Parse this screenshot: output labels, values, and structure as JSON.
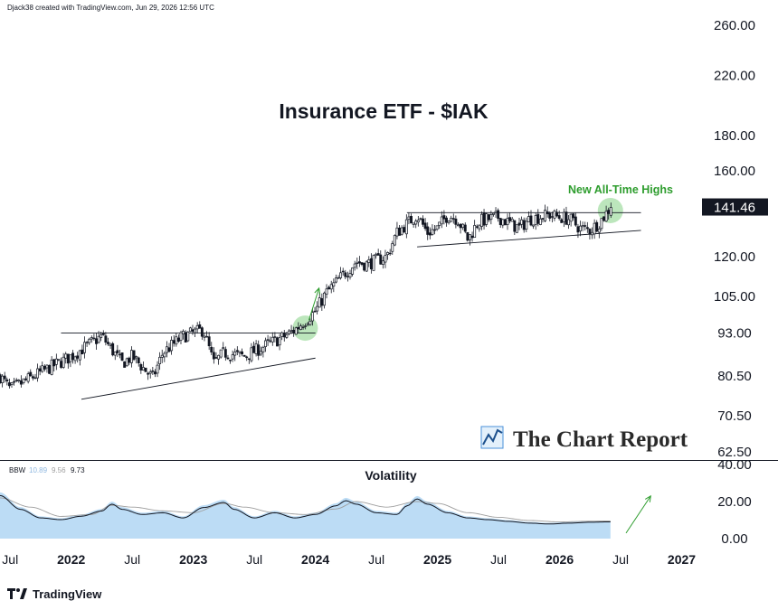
{
  "header": {
    "credit": "Djack38 created with TradingView.com, Jun 29, 2026 12:56 UTC"
  },
  "footer": {
    "brand": "TradingView"
  },
  "watermark": {
    "text": "The Chart Report"
  },
  "colors": {
    "candle": "#131722",
    "trendline": "#131722",
    "highlight_fill": "#8fd68f",
    "annotation_green": "#2e9d2e",
    "bbw_area": "#bcdcf5",
    "bbw_line": "#131722",
    "bbw_signal": "#9e9e9e",
    "axis_text": "#131722",
    "last_price_bg": "#131722"
  },
  "chart_data": [
    {
      "type": "candlestick",
      "title": "Insurance ETF - $IAK",
      "y_scale": "log",
      "ylim": [
        62.5,
        260
      ],
      "y_ticks": [
        "260.00",
        "220.00",
        "180.00",
        "160.00",
        "120.00",
        "105.00",
        "93.00",
        "80.50",
        "70.50",
        "62.50"
      ],
      "y_tick_values": [
        260,
        220,
        180,
        160,
        120,
        105,
        93,
        80.5,
        70.5,
        62.5
      ],
      "x_ticks": [
        "Jul",
        "2022",
        "Jul",
        "2023",
        "Jul",
        "2024",
        "Jul",
        "2025",
        "Jul",
        "2026",
        "Jul",
        "2027"
      ],
      "x_tick_dates": [
        "2021-07",
        "2022-01",
        "2022-07",
        "2023-01",
        "2023-07",
        "2024-01",
        "2024-07",
        "2025-01",
        "2025-07",
        "2026-01",
        "2026-07",
        "2027-01"
      ],
      "xlim": [
        "2021-06",
        "2027-03"
      ],
      "last_price": "141.46",
      "close_path": [
        [
          "2021-06",
          80.5
        ],
        [
          "2021-07",
          77
        ],
        [
          "2021-09",
          80
        ],
        [
          "2021-11",
          83
        ],
        [
          "2022-01",
          86
        ],
        [
          "2022-03",
          90
        ],
        [
          "2022-04",
          92
        ],
        [
          "2022-06",
          84
        ],
        [
          "2022-07",
          86
        ],
        [
          "2022-09",
          80
        ],
        [
          "2022-10",
          87
        ],
        [
          "2022-12",
          92
        ],
        [
          "2023-01",
          93
        ],
        [
          "2023-02",
          94
        ],
        [
          "2023-03",
          84
        ],
        [
          "2023-04",
          87
        ],
        [
          "2023-06",
          86
        ],
        [
          "2023-08",
          89
        ],
        [
          "2023-10",
          92
        ],
        [
          "2023-11",
          94
        ],
        [
          "2024-01",
          100
        ],
        [
          "2024-02",
          106
        ],
        [
          "2024-04",
          114
        ],
        [
          "2024-05",
          118
        ],
        [
          "2024-06",
          117
        ],
        [
          "2024-08",
          120
        ],
        [
          "2024-09",
          130
        ],
        [
          "2024-11",
          138
        ],
        [
          "2024-12",
          130
        ],
        [
          "2025-01",
          132
        ],
        [
          "2025-02",
          138
        ],
        [
          "2025-03",
          136
        ],
        [
          "2025-04",
          127
        ],
        [
          "2025-05",
          135
        ],
        [
          "2025-07",
          137
        ],
        [
          "2025-09",
          132
        ],
        [
          "2025-10",
          136
        ],
        [
          "2025-12",
          138
        ],
        [
          "2026-02",
          136
        ],
        [
          "2026-03",
          132
        ],
        [
          "2026-04",
          131
        ],
        [
          "2026-05",
          135
        ],
        [
          "2026-06",
          141.46
        ]
      ],
      "trendlines": [
        {
          "name": "2022-2023 resistance",
          "from": [
            "2021-12",
            93
          ],
          "to": [
            "2024-01",
            93
          ]
        },
        {
          "name": "2022-2023 support",
          "from": [
            "2022-02",
            74.5
          ],
          "to": [
            "2024-01",
            85.5
          ]
        },
        {
          "name": "2024-2026 resistance",
          "from": [
            "2024-10",
            139
          ],
          "to": [
            "2026-09",
            139
          ]
        },
        {
          "name": "2024-2026 support",
          "from": [
            "2024-11",
            124
          ],
          "to": [
            "2026-09",
            131
          ]
        }
      ],
      "highlights": [
        {
          "date": "2023-12",
          "price": 94.5,
          "label": ""
        },
        {
          "date": "2026-06",
          "price": 140,
          "label": "New All-Time Highs"
        }
      ],
      "arrows": [
        {
          "from": [
            "2023-12",
            97
          ],
          "to": [
            "2024-01",
            108
          ]
        }
      ]
    },
    {
      "type": "area",
      "title": "Volatility",
      "indicator": "BBW",
      "legend_values": [
        "10.89",
        "9.56",
        "9.73"
      ],
      "ylim": [
        0,
        40
      ],
      "y_ticks": [
        "40.00",
        "20.00",
        "0.00"
      ],
      "y_tick_values": [
        40,
        20,
        0
      ],
      "series_bbw": [
        [
          "2021-06",
          25
        ],
        [
          "2021-08",
          17
        ],
        [
          "2021-10",
          12
        ],
        [
          "2021-12",
          11
        ],
        [
          "2022-02",
          13
        ],
        [
          "2022-04",
          16
        ],
        [
          "2022-05",
          20
        ],
        [
          "2022-06",
          17
        ],
        [
          "2022-08",
          14
        ],
        [
          "2022-10",
          15
        ],
        [
          "2022-12",
          12
        ],
        [
          "2023-02",
          18
        ],
        [
          "2023-04",
          21
        ],
        [
          "2023-05",
          17
        ],
        [
          "2023-07",
          12
        ],
        [
          "2023-09",
          15
        ],
        [
          "2023-11",
          12
        ],
        [
          "2024-01",
          14
        ],
        [
          "2024-03",
          19
        ],
        [
          "2024-04",
          22
        ],
        [
          "2024-05",
          20
        ],
        [
          "2024-07",
          15
        ],
        [
          "2024-09",
          14
        ],
        [
          "2024-10",
          19
        ],
        [
          "2024-11",
          23
        ],
        [
          "2024-12",
          20
        ],
        [
          "2025-02",
          15
        ],
        [
          "2025-04",
          12
        ],
        [
          "2025-06",
          11
        ],
        [
          "2025-08",
          10
        ],
        [
          "2025-10",
          9
        ],
        [
          "2025-12",
          8.5
        ],
        [
          "2026-02",
          9
        ],
        [
          "2026-04",
          9.5
        ],
        [
          "2026-06",
          9.73
        ]
      ],
      "series_signal": [
        [
          "2021-06",
          22
        ],
        [
          "2021-09",
          17
        ],
        [
          "2021-12",
          12
        ],
        [
          "2022-03",
          13
        ],
        [
          "2022-05",
          18
        ],
        [
          "2022-07",
          17
        ],
        [
          "2022-10",
          15
        ],
        [
          "2023-01",
          14
        ],
        [
          "2023-04",
          19
        ],
        [
          "2023-06",
          17
        ],
        [
          "2023-09",
          14
        ],
        [
          "2023-12",
          13
        ],
        [
          "2024-03",
          16
        ],
        [
          "2024-05",
          20
        ],
        [
          "2024-08",
          17
        ],
        [
          "2024-11",
          20
        ],
        [
          "2025-01",
          19
        ],
        [
          "2025-04",
          14
        ],
        [
          "2025-07",
          11.5
        ],
        [
          "2025-10",
          9.8
        ],
        [
          "2026-01",
          9
        ],
        [
          "2026-04",
          9.4
        ],
        [
          "2026-06",
          9.56
        ]
      ],
      "arrows": [
        {
          "from": [
            "2026-07",
            3
          ],
          "to": [
            "2026-08",
            23
          ]
        }
      ]
    }
  ]
}
